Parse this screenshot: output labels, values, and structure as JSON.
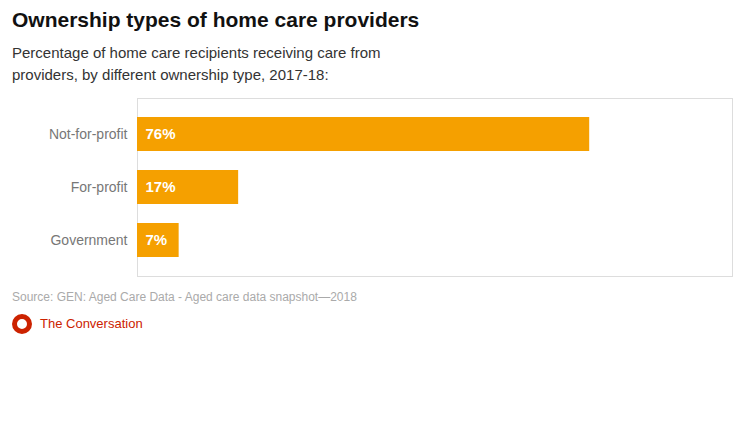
{
  "chart_data": {
    "type": "bar",
    "orientation": "horizontal",
    "title": "Ownership types of home care providers",
    "subtitle": "Percentage of home care recipients receiving care from\nproviders, by different ownership type, 2017-18:",
    "source": "Source: GEN: Aged Care Data - Aged care data snapshot—2018",
    "annotations": [
      "The Conversation"
    ],
    "categories": [
      "Not-for-profit",
      "For-profit",
      "Government"
    ],
    "values": [
      76,
      17,
      7
    ],
    "value_labels": [
      "76%",
      "17%",
      "7%"
    ],
    "data_labels": true,
    "color": "#F5A000",
    "xlim": [
      0,
      100
    ],
    "tick_labels": "y",
    "grid": false
  }
}
